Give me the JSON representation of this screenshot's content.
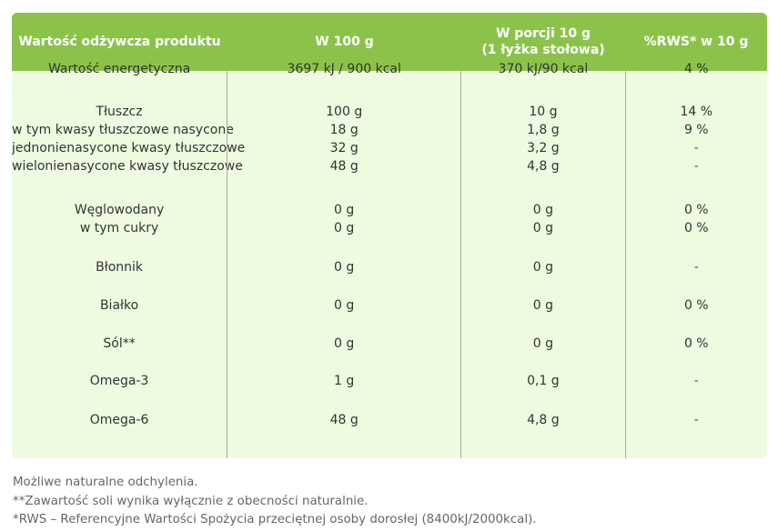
{
  "header": {
    "col1": "Wartość odżywcza produktu",
    "col2": "W 100 g",
    "col3_line1": "W porcji 10 g",
    "col3_line2": "(1 łyżka stołowa)",
    "col4": "%RWS* w 10 g"
  },
  "rows": [
    {
      "label": "Wartość energetyczna",
      "per100": "3697 kJ / 900 kcal",
      "portion": "370 kJ/90 kcal",
      "rws": "4 %"
    },
    {
      "label": "Tłuszcz",
      "per100": "100 g",
      "portion": "10 g",
      "rws": "14 %"
    },
    {
      "label": "w tym kwasy tłuszczowe nasycone",
      "per100": "18 g",
      "portion": "1,8 g",
      "rws": "9 %"
    },
    {
      "label": "jednonienasycone kwasy tłuszczowe",
      "per100": "32 g",
      "portion": "3,2 g",
      "rws": "-"
    },
    {
      "label": "wielonienasycone kwasy tłuszczowe",
      "per100": "48 g",
      "portion": "4,8 g",
      "rws": "-"
    },
    {
      "label": "Węglowodany",
      "per100": "0 g",
      "portion": "0 g",
      "rws": "0 %"
    },
    {
      "label": "w tym cukry",
      "per100": "0 g",
      "portion": "0 g",
      "rws": "0 %"
    },
    {
      "label": "Błonnik",
      "per100": "0 g",
      "portion": "0 g",
      "rws": "-"
    },
    {
      "label": "Białko",
      "per100": "0 g",
      "portion": "0 g",
      "rws": "0 %"
    },
    {
      "label": "Sól**",
      "per100": "0 g",
      "portion": "0 g",
      "rws": "0 %"
    },
    {
      "label": "Omega-3",
      "per100": "1 g",
      "portion": "0,1 g",
      "rws": "-"
    },
    {
      "label": "Omega-6",
      "per100": "48 g",
      "portion": "4,8 g",
      "rws": "-"
    }
  ],
  "notes": [
    "Możliwe naturalne odchylenia.",
    "**Zawartość soli wynika wyłącznie z obecności naturalnie.",
    "*RWS – Referencyjne Wartości Spożycia przeciętnej osoby dorosłej (8400kJ/2000kcal)."
  ]
}
